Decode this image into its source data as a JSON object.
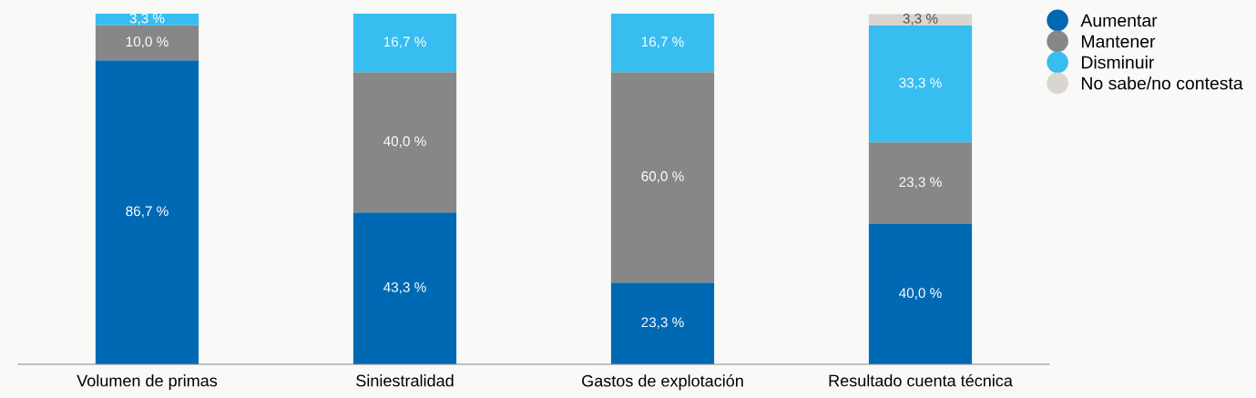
{
  "chart_data": {
    "type": "bar",
    "stacked": true,
    "legend": "top right",
    "grid": false,
    "categories": [
      "Volumen de primas",
      "Siniestralidad",
      "Gastos de explotación",
      "Resultado cuenta técnica"
    ],
    "series": [
      {
        "name": "Aumentar",
        "color": "#0069b4",
        "values": [
          86.7,
          43.3,
          23.3,
          40.0
        ],
        "value_labels": [
          "86,7 %",
          "43,3 %",
          "23,3 %",
          "40,0 %"
        ]
      },
      {
        "name": "Mantener",
        "color": "#878787",
        "values": [
          10.0,
          40.0,
          60.0,
          23.3
        ],
        "value_labels": [
          "10,0 %",
          "40,0 %",
          "60,0 %",
          "23,3 %"
        ]
      },
      {
        "name": "Disminuir",
        "color": "#38bdf0",
        "values": [
          3.3,
          16.7,
          16.7,
          33.3
        ],
        "value_labels": [
          "3,3 %",
          "16,7 %",
          "16,7 %",
          "33,3 %"
        ]
      },
      {
        "name": "No sabe/no contesta",
        "color": "#d9d6d2",
        "values": [
          null,
          null,
          null,
          3.3
        ],
        "value_labels": [
          null,
          null,
          null,
          "3,3 %"
        ]
      }
    ]
  }
}
